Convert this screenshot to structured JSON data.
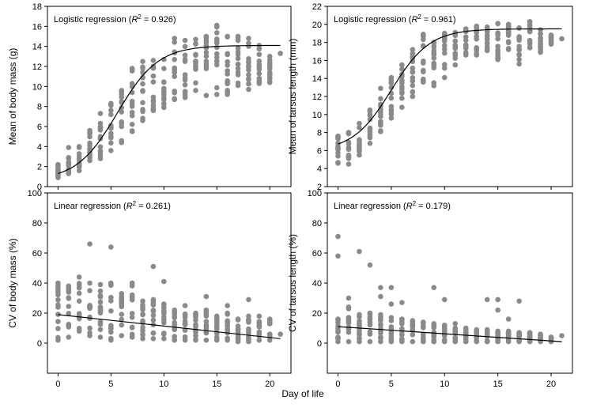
{
  "xlabel": "Day of life",
  "colors": {
    "points": "#8a8a8a",
    "line": "#000000",
    "axis": "#000000"
  },
  "chart_data": [
    {
      "id": "mass-mean",
      "type": "scatter",
      "ylabel": "Mean of body mass (g)",
      "annotation": {
        "prefix": "Logistic regression (",
        "r2": "R",
        "sup": "2",
        "suffix": " = 0.926)"
      },
      "xlim": [
        -1,
        22
      ],
      "ylim": [
        0,
        18
      ],
      "xticks": [
        "0",
        "5",
        "10",
        "15",
        "20"
      ],
      "yticks": [
        "0",
        "2",
        "4",
        "6",
        "8",
        "10",
        "12",
        "14",
        "16",
        "18"
      ],
      "yvalues": [
        0,
        2,
        4,
        6,
        8,
        10,
        12,
        14,
        16,
        18
      ],
      "fit": {
        "type": "logistic",
        "K": 13.5,
        "r": 0.52,
        "x0": 5.6,
        "c": 0.6
      },
      "point_range": [
        [
          0,
          0.9,
          2.2
        ],
        [
          1,
          1.3,
          2.9
        ],
        [
          1,
          3.9,
          3.9
        ],
        [
          2,
          1.6,
          4.0
        ],
        [
          3,
          2.6,
          5.6
        ],
        [
          4,
          2.8,
          7.3
        ],
        [
          5,
          3.6,
          8.3
        ],
        [
          6,
          4.4,
          9.6
        ],
        [
          7,
          5.5,
          11.8
        ],
        [
          8,
          6.6,
          12.5
        ],
        [
          9,
          7.6,
          12.6
        ],
        [
          10,
          7.9,
          12.7
        ],
        [
          11,
          8.7,
          14.8
        ],
        [
          12,
          8.9,
          14.6
        ],
        [
          13,
          9.6,
          14.7
        ],
        [
          14,
          9.1,
          15.0
        ],
        [
          15,
          9.2,
          16.1
        ],
        [
          16,
          9.2,
          15.0
        ],
        [
          17,
          10.1,
          15.0
        ],
        [
          18,
          9.7,
          14.8
        ],
        [
          19,
          10.3,
          14.1
        ],
        [
          20,
          10.4,
          13.0
        ],
        [
          21,
          13.3,
          13.3
        ]
      ]
    },
    {
      "id": "tarsus-mean",
      "type": "scatter",
      "ylabel": "Mean of tarsus length (mm)",
      "annotation": {
        "prefix": "Logistic regression (",
        "r2": "R",
        "sup": "2",
        "suffix": " = 0.961)"
      },
      "xlim": [
        -1,
        22
      ],
      "ylim": [
        2,
        22
      ],
      "xticks": [
        "0",
        "5",
        "10",
        "15",
        "20"
      ],
      "yticks": [
        "2",
        "4",
        "6",
        "8",
        "10",
        "12",
        "14",
        "16",
        "18",
        "20",
        "22"
      ],
      "yvalues": [
        2,
        4,
        6,
        8,
        10,
        12,
        14,
        16,
        18,
        20,
        22
      ],
      "fit": {
        "type": "logistic",
        "K": 13.6,
        "r": 0.55,
        "x0": 5.0,
        "c": 5.9
      },
      "point_range": [
        [
          0,
          4.6,
          7.6
        ],
        [
          1,
          4.5,
          8.0
        ],
        [
          2,
          5.5,
          9.0
        ],
        [
          3,
          6.8,
          10.5
        ],
        [
          4,
          8.1,
          12.9
        ],
        [
          5,
          9.6,
          14.1
        ],
        [
          6,
          10.8,
          15.5
        ],
        [
          7,
          12.0,
          17.2
        ],
        [
          8,
          13.6,
          18.9
        ],
        [
          9,
          13.2,
          18.0
        ],
        [
          10,
          14.1,
          19.0
        ],
        [
          11,
          15.5,
          19.1
        ],
        [
          12,
          16.6,
          19.5
        ],
        [
          13,
          16.6,
          19.8
        ],
        [
          14,
          17.1,
          19.7
        ],
        [
          15,
          16.1,
          20.1
        ],
        [
          16,
          17.2,
          20.0
        ],
        [
          17,
          15.6,
          19.6
        ],
        [
          18,
          17.4,
          20.3
        ],
        [
          19,
          16.9,
          19.4
        ],
        [
          20,
          17.8,
          18.8
        ],
        [
          21,
          18.4,
          18.4
        ]
      ]
    },
    {
      "id": "mass-cv",
      "type": "scatter",
      "ylabel": "CV of body mass (%)",
      "annotation": {
        "prefix": "Linear regression (",
        "r2": "R",
        "sup": "2",
        "suffix": " = 0.261)"
      },
      "xlim": [
        -1,
        22
      ],
      "ylim": [
        -20,
        100
      ],
      "xticks": [
        "0",
        "5",
        "10",
        "15",
        "20"
      ],
      "yticks": [
        "0",
        "20",
        "40",
        "60",
        "80",
        "100"
      ],
      "yvalues": [
        0,
        20,
        40,
        60,
        80,
        100
      ],
      "fit": {
        "type": "linear",
        "x": [
          0,
          21
        ],
        "y": [
          19,
          3
        ]
      },
      "point_range": [
        [
          0,
          2,
          40
        ],
        [
          1,
          4,
          38
        ],
        [
          2,
          8,
          44
        ],
        [
          3,
          5,
          40
        ],
        [
          4,
          4,
          39
        ],
        [
          5,
          2,
          40
        ],
        [
          6,
          5,
          33
        ],
        [
          7,
          4,
          40
        ],
        [
          8,
          3,
          28
        ],
        [
          9,
          3,
          29
        ],
        [
          10,
          3,
          26
        ],
        [
          11,
          2,
          22
        ],
        [
          12,
          2,
          25
        ],
        [
          13,
          2,
          20
        ],
        [
          14,
          2,
          22
        ],
        [
          15,
          2,
          18
        ],
        [
          16,
          2,
          20
        ],
        [
          17,
          1,
          16
        ],
        [
          18,
          1,
          18
        ],
        [
          19,
          2,
          18
        ],
        [
          20,
          2,
          16
        ],
        [
          21,
          6,
          6
        ]
      ],
      "outliers": [
        [
          3,
          66
        ],
        [
          5,
          64
        ],
        [
          9,
          51
        ],
        [
          10,
          41
        ],
        [
          14,
          31
        ],
        [
          18,
          29
        ],
        [
          16,
          25
        ],
        [
          7,
          29
        ]
      ]
    },
    {
      "id": "tarsus-cv",
      "type": "scatter",
      "ylabel": "CV of tarsus length (%)",
      "annotation": {
        "prefix": "Linear regression (",
        "r2": "R",
        "sup": "2",
        "suffix": " = 0.179)"
      },
      "xlim": [
        -1,
        22
      ],
      "ylim": [
        -20,
        100
      ],
      "xticks": [
        "0",
        "5",
        "10",
        "15",
        "20"
      ],
      "yticks": [
        "0",
        "20",
        "40",
        "60",
        "80",
        "100"
      ],
      "yvalues": [
        0,
        20,
        40,
        60,
        80,
        100
      ],
      "fit": {
        "type": "linear",
        "x": [
          0,
          21
        ],
        "y": [
          11,
          1
        ]
      },
      "point_range": [
        [
          0,
          1,
          16
        ],
        [
          1,
          1,
          24
        ],
        [
          2,
          1,
          19
        ],
        [
          3,
          1,
          20
        ],
        [
          4,
          1,
          19
        ],
        [
          5,
          1,
          17
        ],
        [
          6,
          1,
          16
        ],
        [
          7,
          1,
          15
        ],
        [
          8,
          1,
          14
        ],
        [
          9,
          1,
          13
        ],
        [
          10,
          1,
          12
        ],
        [
          11,
          1,
          10
        ],
        [
          12,
          1,
          10
        ],
        [
          13,
          1,
          9
        ],
        [
          14,
          1,
          9
        ],
        [
          15,
          1,
          8
        ],
        [
          16,
          1,
          8
        ],
        [
          17,
          1,
          7
        ],
        [
          18,
          1,
          7
        ],
        [
          19,
          1,
          6
        ],
        [
          20,
          1,
          4
        ],
        [
          21,
          5,
          5
        ]
      ],
      "outliers": [
        [
          0,
          71
        ],
        [
          0,
          58
        ],
        [
          2,
          61
        ],
        [
          3,
          52
        ],
        [
          1,
          30
        ],
        [
          4,
          37
        ],
        [
          4,
          31
        ],
        [
          5,
          37
        ],
        [
          5,
          26
        ],
        [
          6,
          27
        ],
        [
          9,
          37
        ],
        [
          10,
          29
        ],
        [
          14,
          29
        ],
        [
          15,
          29
        ],
        [
          15,
          22
        ],
        [
          16,
          16
        ],
        [
          17,
          28
        ],
        [
          11,
          13
        ]
      ]
    }
  ]
}
